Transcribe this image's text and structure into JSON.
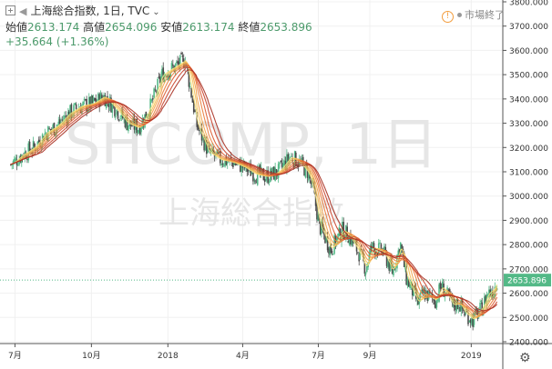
{
  "header": {
    "symbol_title": "上海総合指数, 1日, TVC",
    "open_label": "始値",
    "open_value": "2613.174",
    "high_label": "高値",
    "high_value": "2654.096",
    "low_label": "安値",
    "low_value": "2613.174",
    "close_label": "終値",
    "close_value": "2653.896",
    "change": "+35.664 (+1.36%)",
    "market_status": "市場終了",
    "icons": [
      "expand-icon",
      "back-arrow-icon",
      "chevron-down-icon",
      "warning-icon",
      "status-dot-icon",
      "gear-icon"
    ]
  },
  "watermark": {
    "line1": "SHCOMP, 1日",
    "line2": "上海総合指数"
  },
  "colors": {
    "candle_up": "#53b987",
    "candle_down": "#4a4a4a",
    "ribbon": [
      "#f9e27d",
      "#f6c15a",
      "#f2a24a",
      "#ea7e3c",
      "#dd5c32",
      "#c9412a",
      "#a83123"
    ],
    "price_label_bg": "#53b987",
    "grid": "#f0f0f0"
  },
  "chart_data": {
    "type": "line",
    "series": [
      {
        "values": [
          3130,
          3170,
          3200,
          3260,
          3290,
          3340,
          3370,
          3380,
          3410,
          3360,
          3300,
          3280,
          3370,
          3500,
          3560,
          3290,
          3180,
          3150,
          3140,
          3120,
          3090,
          3080,
          3100,
          3160,
          3150,
          3100,
          3020,
          2880,
          2780,
          2860,
          2840,
          2760,
          2700,
          2790,
          2770,
          2690,
          2800,
          2660,
          2560,
          2600,
          2570,
          2630,
          2550,
          2560,
          2520,
          2490,
          2540,
          2600,
          2615,
          2653.896
        ],
        "x": [
          "2017-06-26",
          "2017-07-10",
          "2017-07-24",
          "2017-08-07",
          "2017-08-21",
          "2017-09-04",
          "2017-09-18",
          "2017-10-02",
          "2017-10-16",
          "2017-10-30",
          "2017-11-13",
          "2017-11-27",
          "2017-12-11",
          "2017-12-25",
          "2018-01-22",
          "2018-02-05",
          "2018-02-19",
          "2018-03-05",
          "2018-03-19",
          "2018-04-02",
          "2018-04-16",
          "2018-04-30",
          "2018-05-14",
          "2018-05-28",
          "2018-06-04",
          "2018-06-18",
          "2018-06-25",
          "2018-07-02",
          "2018-07-16",
          "2018-07-30",
          "2018-08-06",
          "2018-08-20",
          "2018-08-27",
          "2018-09-03",
          "2018-09-17",
          "2018-09-28",
          "2018-10-08",
          "2018-10-15",
          "2018-10-29",
          "2018-11-05",
          "2018-11-19",
          "2018-11-26",
          "2018-12-10",
          "2018-12-17",
          "2018-12-24",
          "2019-01-03",
          "2019-01-14",
          "2019-01-21",
          "2019-01-28",
          "2019-02-01"
        ]
      }
    ],
    "ylim": [
      2400,
      3800
    ],
    "y_ticks": [
      2400,
      2500,
      2600,
      2700,
      2800,
      2900,
      3000,
      3100,
      3200,
      3300,
      3400,
      3500,
      3600,
      3700,
      3800
    ],
    "y_tick_labels": [
      "2400.000",
      "2500.000",
      "2600.000",
      "2700.000",
      "2800.000",
      "2900.000",
      "3000.000",
      "3100.000",
      "3200.000",
      "3300.000",
      "3400.000",
      "3500.000",
      "3600.000",
      "3700.000",
      "3800.000"
    ],
    "x_tick_labels": [
      {
        "label": "7月",
        "date": "2017-07-01"
      },
      {
        "label": "10月",
        "date": "2017-10-01"
      },
      {
        "label": "2018",
        "date": "2018-01-01"
      },
      {
        "label": "4月",
        "date": "2018-04-01"
      },
      {
        "label": "7月",
        "date": "2018-07-01"
      },
      {
        "label": "9月",
        "date": "2018-09-01"
      },
      {
        "label": "2019",
        "date": "2019-01-01"
      }
    ],
    "last_price": 2653.896,
    "last_price_label": "2653.896",
    "grid": true
  }
}
